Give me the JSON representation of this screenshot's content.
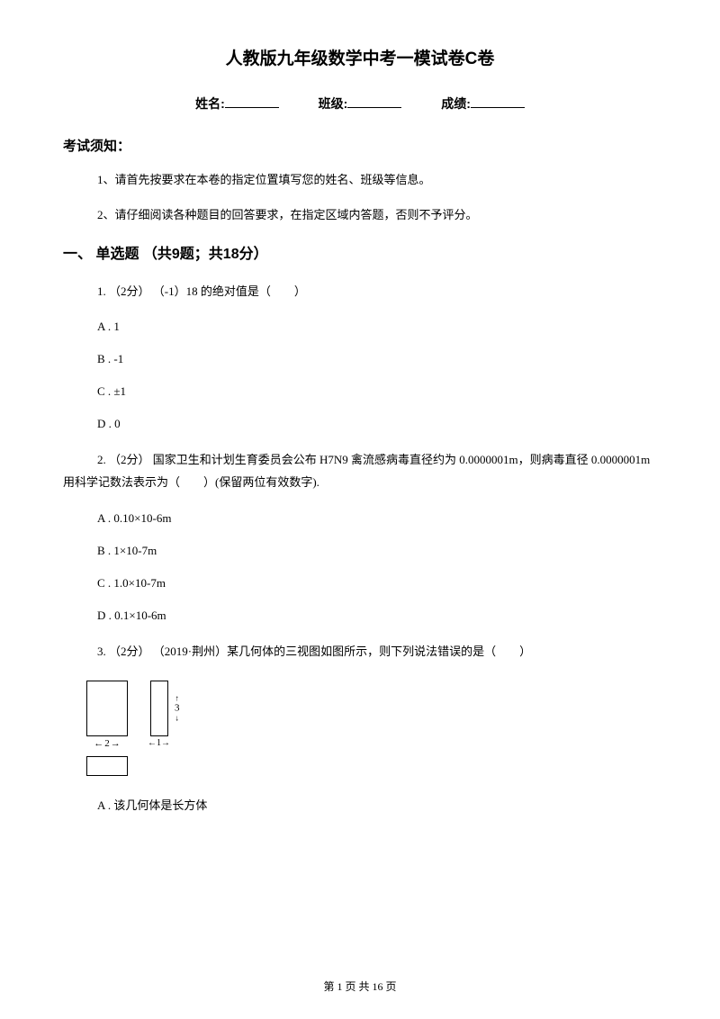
{
  "title": "人教版九年级数学中考一模试卷C卷",
  "info": {
    "name_label": "姓名:",
    "class_label": "班级:",
    "score_label": "成绩:"
  },
  "notice_heading": "考试须知：",
  "instructions": [
    "1、请首先按要求在本卷的指定位置填写您的姓名、班级等信息。",
    "2、请仔细阅读各种题目的回答要求，在指定区域内答题，否则不予评分。"
  ],
  "part1_heading": "一、 单选题 （共9题；共18分）",
  "q1": {
    "stem": "1. （2分） （-1）18 的绝对值是（　　）",
    "a": "A . 1",
    "b": "B . -1",
    "c": "C . ±1",
    "d": "D . 0"
  },
  "q2": {
    "stem": "2. （2分） 国家卫生和计划生育委员会公布 H7N9 禽流感病毒直径约为 0.0000001m，则病毒直径 0.0000001m用科学记数法表示为（　　）(保留两位有效数字).",
    "a": "A . 0.10×10-6m",
    "b": "B . 1×10-7m",
    "c": "C . 1.0×10-7m",
    "d": "D . 0.1×10-6m"
  },
  "q3": {
    "stem": "3. （2分） （2019·荆州）某几何体的三视图如图所示，则下列说法错误的是（　　）",
    "a": "A . 该几何体是长方体",
    "dim_width": "2",
    "dim_height": "3",
    "dim_depth": "1"
  },
  "footer": "第 1 页 共 16 页"
}
